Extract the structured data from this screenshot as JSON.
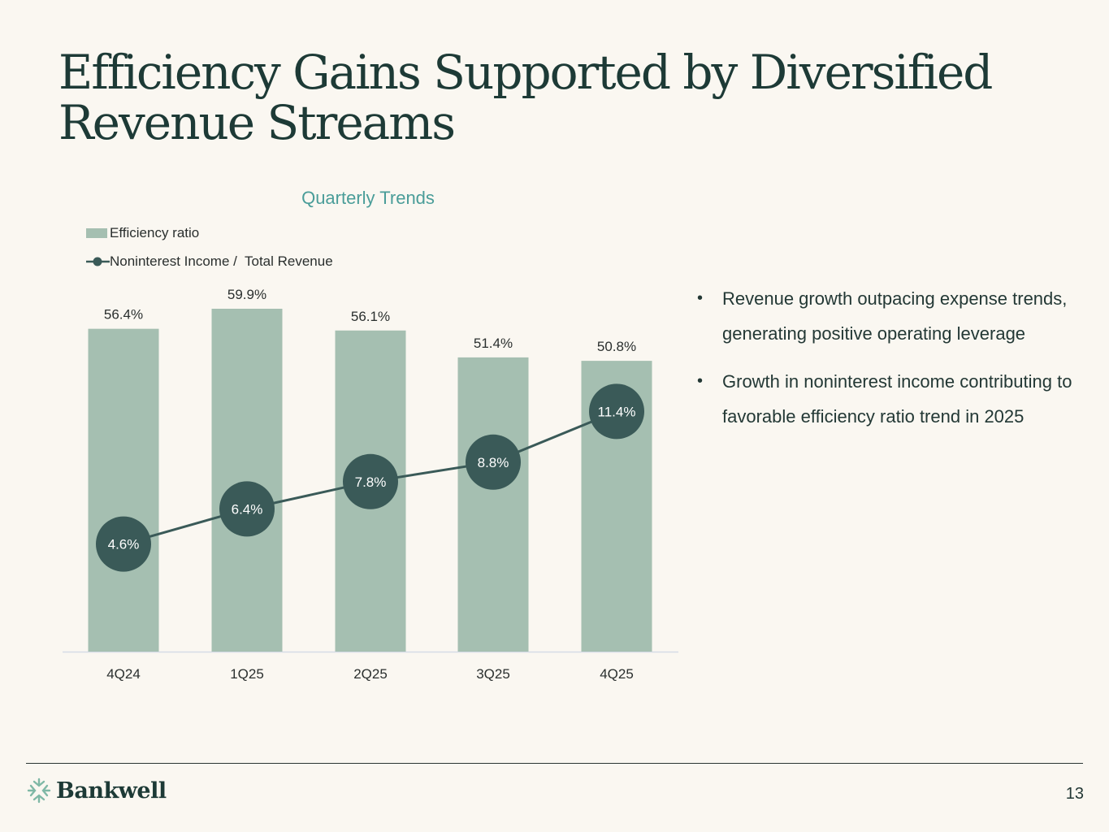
{
  "slide": {
    "title": "Efficiency Gains Supported by Diversified Revenue Streams",
    "page_number": "13",
    "brand": "Bankwell"
  },
  "bullets": [
    "Revenue growth outpacing expense trends, generating positive operating leverage",
    "Growth in noninterest income contributing to favorable efficiency ratio trend in 2025"
  ],
  "chart_data": {
    "type": "bar",
    "title": "Quarterly Trends",
    "categories": [
      "4Q24",
      "1Q25",
      "2Q25",
      "3Q25",
      "4Q25"
    ],
    "series": [
      {
        "name": "Efficiency ratio",
        "type": "bar",
        "values": [
          56.4,
          59.9,
          56.1,
          51.4,
          50.8
        ],
        "labels": [
          "56.4%",
          "59.9%",
          "56.1%",
          "51.4%",
          "50.8%"
        ],
        "color": "#a5bfb1"
      },
      {
        "name": "Noninterest Income /  Total Revenue",
        "type": "line",
        "values": [
          4.6,
          6.4,
          7.8,
          8.8,
          11.4
        ],
        "labels": [
          "4.6%",
          "6.4%",
          "7.8%",
          "8.8%",
          "11.4%"
        ],
        "color": "#3a5a58"
      }
    ],
    "bar_axis_range": [
      0,
      59.9
    ],
    "line_axis_range": [
      0,
      20
    ],
    "xlabel": "",
    "ylabel": "",
    "grid": false,
    "legend_position": "top-left"
  },
  "colors": {
    "background": "#faf7f1",
    "title": "#1d3a36",
    "accent_teal": "#4a9d99",
    "bar": "#a5bfb1",
    "line": "#3a5a58",
    "axis": "#d6dce6"
  }
}
